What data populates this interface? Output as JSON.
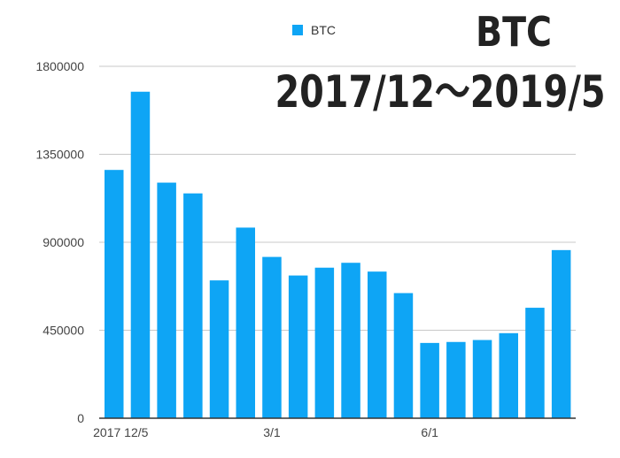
{
  "chart_data": {
    "type": "bar",
    "title": [
      "BTC",
      "2017/12〜2019/5"
    ],
    "legend": {
      "position": "top",
      "entries": [
        "BTC"
      ]
    },
    "x_tick_labels": [
      "2017 12/5",
      "3/1",
      "6/1"
    ],
    "y_ticks": [
      0,
      450000,
      900000,
      1350000,
      1800000
    ],
    "ylim": [
      0,
      1800000
    ],
    "grid": true,
    "color": "#0ea5f5",
    "series": [
      {
        "name": "BTC",
        "values": [
          1270000,
          1670000,
          1205000,
          1150000,
          705000,
          975000,
          825000,
          730000,
          770000,
          795000,
          750000,
          640000,
          385000,
          390000,
          400000,
          435000,
          565000,
          860000
        ]
      }
    ]
  }
}
